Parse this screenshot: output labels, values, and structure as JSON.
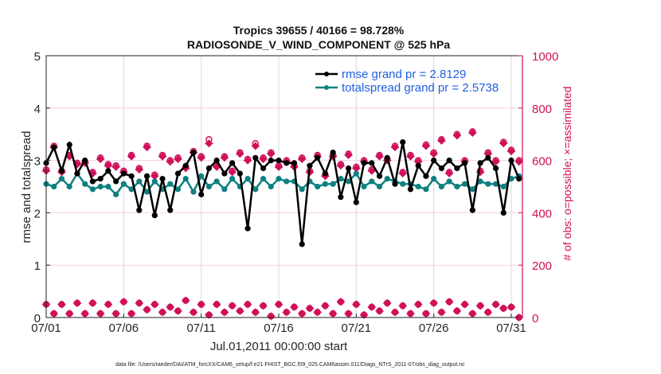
{
  "chart_data": {
    "type": "line",
    "title": "Tropics 39655 / 40166 = 98.728%",
    "subtitle": "RADIOSONDE_V_WIND_COMPONENT @ 525 hPa",
    "xlabel": "Jul.01,2011 00:00:00 start",
    "ylabel": "rmse and totalspread",
    "y2label": "# of obs: o=possible; ×=assimilated",
    "footnote": "data file: /Users/raeder/DAI/ATM_forcXX/CAM6_setup/f.e21.FHIST_BGC.f09_025.CAM6assim.011/Diags_NTrS_2011-07/obs_diag_output.nc",
    "xlim": [
      0,
      30.5
    ],
    "ylim": [
      0,
      5
    ],
    "y2lim": [
      0,
      1000
    ],
    "x_ticks": [
      0,
      5,
      10,
      15,
      20,
      25,
      30
    ],
    "x_tick_labels": [
      "07/01",
      "07/06",
      "07/11",
      "07/16",
      "07/21",
      "07/26",
      "07/31"
    ],
    "y_ticks": [
      0,
      1,
      2,
      3,
      4,
      5
    ],
    "y_tick_labels": [
      "0",
      "1",
      "2",
      "3",
      "4",
      "5"
    ],
    "y2_ticks": [
      0,
      200,
      400,
      600,
      800,
      1000
    ],
    "y2_tick_labels": [
      "0",
      "200",
      "400",
      "600",
      "800",
      "1000"
    ],
    "grid": true,
    "legend_position": "top-right",
    "x_step_days": 0.5,
    "series": [
      {
        "name": "rmse grand pr = 2.8129",
        "axis": "left",
        "color": "#000000",
        "values": [
          2.95,
          3.25,
          2.8,
          3.3,
          2.75,
          3.0,
          2.6,
          2.65,
          2.8,
          2.6,
          2.75,
          2.7,
          2.05,
          2.7,
          1.95,
          2.65,
          2.05,
          2.75,
          2.9,
          3.15,
          2.35,
          2.85,
          3.0,
          2.75,
          2.95,
          2.75,
          1.7,
          3.05,
          2.85,
          3.0,
          3.0,
          2.95,
          2.95,
          1.4,
          2.9,
          3.05,
          2.75,
          3.15,
          2.3,
          2.85,
          2.2,
          2.95,
          2.95,
          2.7,
          3.05,
          2.55,
          3.35,
          2.45,
          2.9,
          2.7,
          3.0,
          2.85,
          3.0,
          2.85,
          2.95,
          2.05,
          2.95,
          3.05,
          2.85,
          2.0,
          3.0,
          2.65
        ]
      },
      {
        "name": "totalspread grand pr = 2.5738",
        "axis": "left",
        "color": "#0f8080",
        "values": [
          2.55,
          2.5,
          2.65,
          2.5,
          2.75,
          2.55,
          2.45,
          2.5,
          2.5,
          2.35,
          2.55,
          2.45,
          2.6,
          2.4,
          2.6,
          2.45,
          2.55,
          2.45,
          2.65,
          2.4,
          2.7,
          2.5,
          2.6,
          2.45,
          2.65,
          2.5,
          2.65,
          2.45,
          2.65,
          2.5,
          2.65,
          2.6,
          2.6,
          2.45,
          2.6,
          2.5,
          2.55,
          2.55,
          2.65,
          2.6,
          2.75,
          2.5,
          2.6,
          2.5,
          2.65,
          2.6,
          2.55,
          2.55,
          2.5,
          2.45,
          2.65,
          2.5,
          2.6,
          2.5,
          2.55,
          2.45,
          2.6,
          2.55,
          2.55,
          2.5,
          2.65,
          2.7
        ]
      }
    ],
    "obs_possible": [
      565,
      655,
      560,
      620,
      590,
      595,
      555,
      610,
      585,
      580,
      560,
      620,
      570,
      655,
      545,
      620,
      600,
      610,
      575,
      635,
      615,
      680,
      580,
      615,
      560,
      630,
      605,
      665,
      610,
      630,
      580,
      600,
      580,
      610,
      560,
      620,
      545,
      620,
      585,
      625,
      575,
      600,
      565,
      620,
      605,
      655,
      555,
      620,
      600,
      660,
      630,
      680,
      555,
      700,
      600,
      710,
      560,
      630,
      600,
      670,
      640,
      600
    ],
    "obs_assimilated": [
      560,
      650,
      555,
      615,
      585,
      590,
      550,
      605,
      580,
      575,
      555,
      615,
      565,
      650,
      540,
      615,
      595,
      605,
      570,
      630,
      610,
      665,
      575,
      610,
      555,
      625,
      600,
      655,
      605,
      625,
      575,
      595,
      575,
      605,
      555,
      615,
      540,
      615,
      580,
      620,
      570,
      595,
      560,
      615,
      600,
      650,
      550,
      615,
      595,
      655,
      625,
      675,
      550,
      695,
      595,
      705,
      555,
      625,
      595,
      665,
      635,
      595
    ],
    "obs_low_possible": [
      50,
      15,
      50,
      15,
      55,
      15,
      55,
      15,
      50,
      15,
      60,
      15,
      55,
      30,
      50,
      20,
      40,
      25,
      65,
      20,
      50,
      10,
      50,
      20,
      45,
      25,
      50,
      20,
      45,
      5,
      50,
      20,
      40,
      15,
      35,
      20,
      45,
      15,
      60,
      15,
      50,
      10,
      40,
      25,
      55,
      20,
      45,
      15,
      50,
      15,
      55,
      20,
      60,
      25,
      50,
      15,
      45,
      20,
      50,
      35,
      40,
      0
    ],
    "obs_low_assimilated": [
      50,
      15,
      50,
      15,
      55,
      15,
      55,
      15,
      50,
      15,
      60,
      15,
      55,
      30,
      50,
      20,
      40,
      25,
      65,
      20,
      50,
      10,
      50,
      20,
      45,
      25,
      50,
      20,
      45,
      5,
      50,
      20,
      40,
      15,
      35,
      20,
      45,
      15,
      60,
      15,
      50,
      10,
      40,
      25,
      55,
      20,
      45,
      15,
      50,
      15,
      55,
      20,
      60,
      25,
      50,
      15,
      45,
      20,
      50,
      35,
      40,
      0
    ]
  }
}
